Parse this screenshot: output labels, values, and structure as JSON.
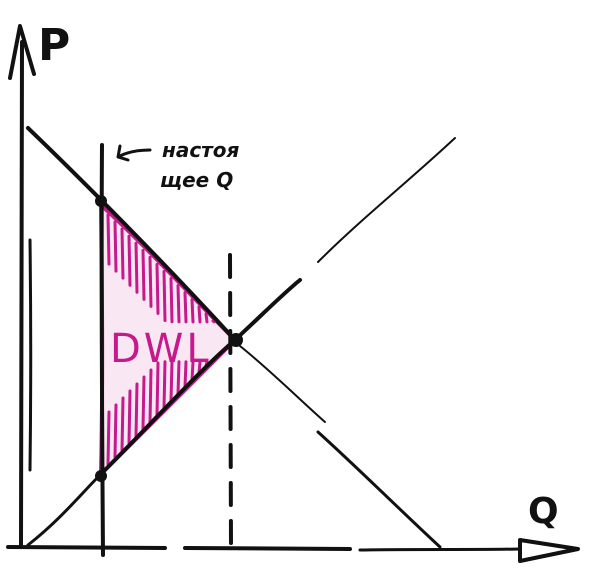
{
  "diagram": {
    "axis_labels": {
      "price": "P",
      "quantity": "Q"
    },
    "annotation": {
      "line1": "настоя",
      "line2": "щее Q"
    },
    "region_label": "DWL",
    "colors": {
      "ink": "#111111",
      "deadweight_loss": "#c5198c",
      "background": "#ffffff"
    }
  }
}
